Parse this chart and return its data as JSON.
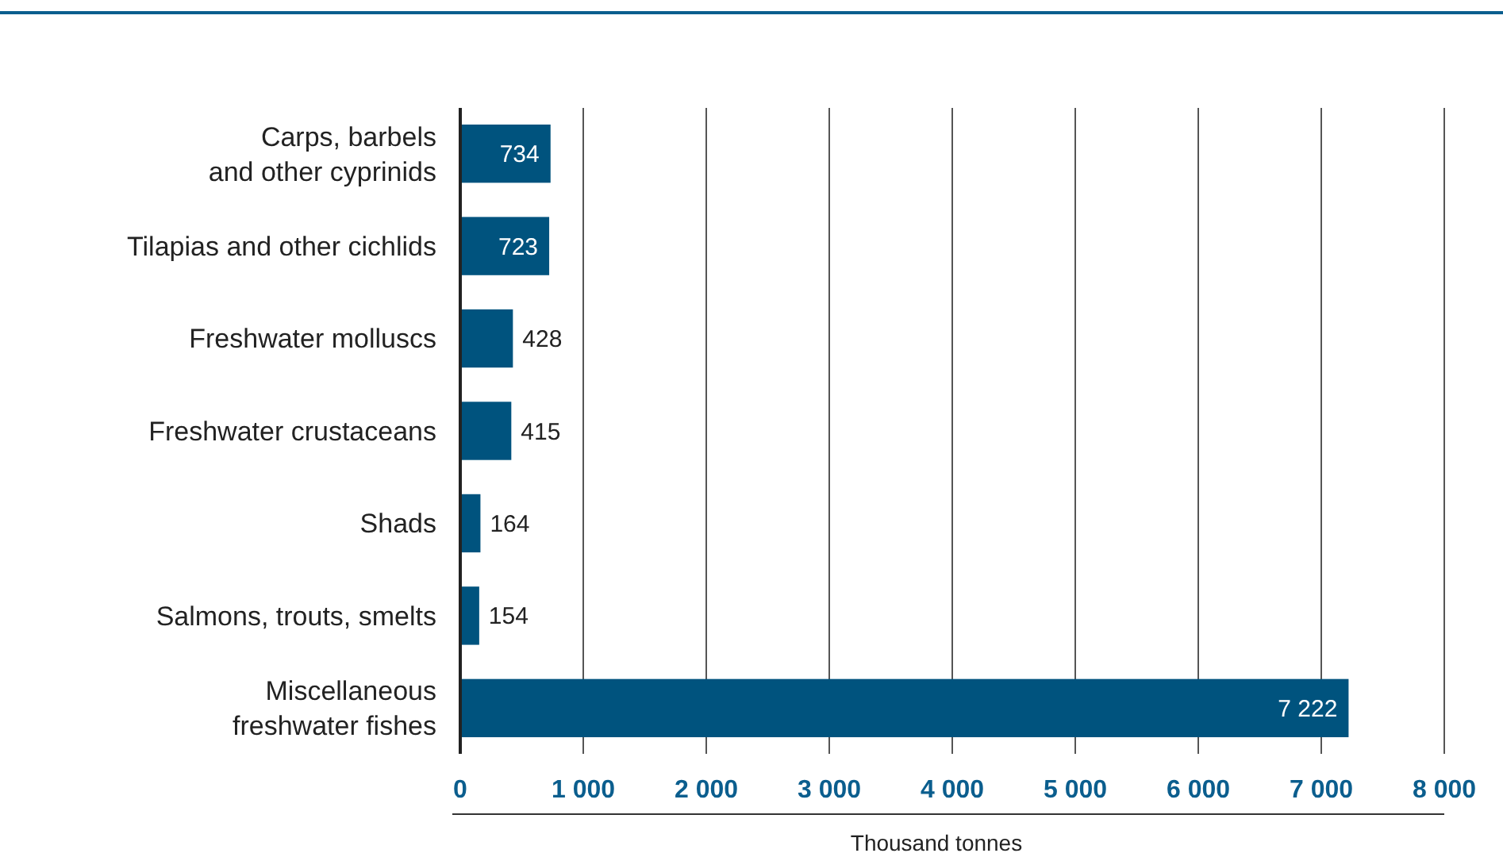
{
  "chart_data": {
    "type": "bar",
    "orientation": "horizontal",
    "xlabel": "Thousand tonnes",
    "categories": [
      "Carps, barbels\nand other cyprinids",
      "Tilapias and other cichlids",
      "Freshwater molluscs",
      "Freshwater crustaceans",
      "Shads",
      "Salmons, trouts, smelts",
      "Miscellaneous\nfreshwater fishes"
    ],
    "values": [
      734,
      723,
      428,
      415,
      164,
      154,
      7222
    ],
    "value_labels": [
      "734",
      "723",
      "428",
      "415",
      "164",
      "154",
      "7 222"
    ],
    "color": "#00537e",
    "xlim": [
      0,
      8000
    ],
    "xticks": [
      0,
      {
        "value": 1000,
        "label": "1 000"
      },
      {
        "value": 2000,
        "label": "2 000"
      },
      {
        "value": 3000,
        "label": "3 000"
      },
      {
        "value": 4000,
        "label": "4 000"
      },
      {
        "value": 5000,
        "label": "5 000"
      },
      {
        "value": 6000,
        "label": "6 000"
      },
      {
        "value": 7000,
        "label": "7 000"
      },
      {
        "value": 8000,
        "label": "8 000"
      }
    ],
    "grid": "x"
  }
}
